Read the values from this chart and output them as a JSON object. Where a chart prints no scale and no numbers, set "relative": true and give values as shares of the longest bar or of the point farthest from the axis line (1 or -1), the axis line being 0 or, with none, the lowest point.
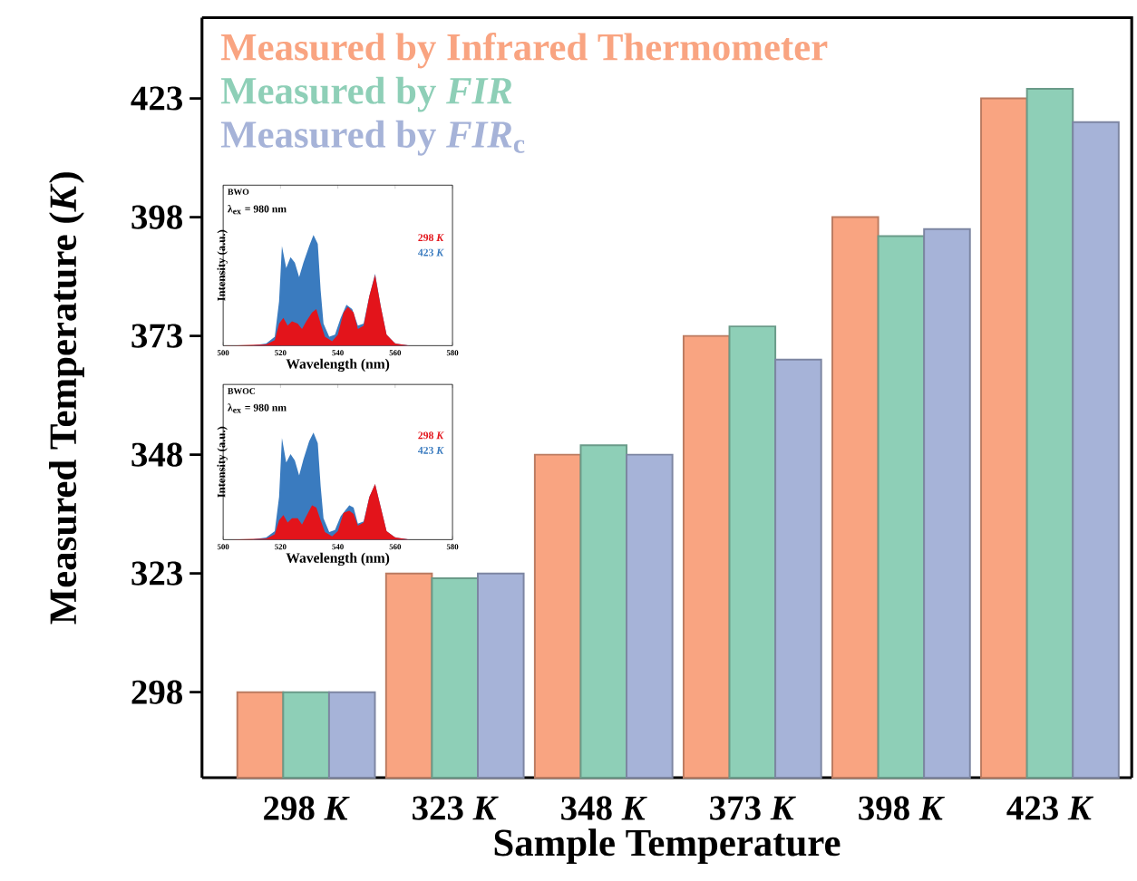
{
  "chart_data": [
    {
      "type": "bar",
      "categories": [
        "298 *K*",
        "323 *K*",
        "348 *K*",
        "373 *K*",
        "398 *K*",
        "423 *K*"
      ],
      "xlabel": "Sample Temperature",
      "ylabel": "Measured Temperature (*K*)",
      "ylim": [
        280,
        440
      ],
      "yticks": [
        298,
        323,
        348,
        373,
        398,
        423
      ],
      "legend": "top left",
      "series": [
        {
          "name": "Measured by Infrared Thermometer",
          "color": "#f9a481",
          "values": [
            298,
            323,
            348,
            373,
            398,
            423
          ]
        },
        {
          "name": "Measured by *FIR*",
          "color": "#8ecfb7",
          "values": [
            298,
            322,
            350,
            375,
            394,
            425
          ]
        },
        {
          "name": "Measured by *FIR*$_{c}$",
          "color": "#a6b3d8",
          "values": [
            298,
            323,
            348,
            368,
            395.5,
            418
          ]
        }
      ]
    },
    {
      "type": "area",
      "relative": true,
      "title": "BWO",
      "subtitle": "λ$_{ex}$ = 980 nm",
      "xlabel": "Wavelength (nm)",
      "ylabel": "Intensity (a.u.)",
      "xlim": [
        500,
        580
      ],
      "xticks": [
        500,
        520,
        540,
        560,
        580
      ],
      "legend": "right",
      "series": [
        {
          "name": "298 *K*",
          "color": "#e3141b",
          "x": [
            500,
            515,
            518,
            519.5,
            521,
            522.5,
            524,
            526,
            527.5,
            529,
            531,
            532.5,
            534,
            535.5,
            538,
            540,
            542,
            543.5,
            545.5,
            547,
            549,
            551,
            553,
            555,
            557,
            560,
            565,
            580
          ],
          "values": [
            0,
            0.01,
            0.05,
            0.2,
            0.25,
            0.18,
            0.22,
            0.2,
            0.15,
            0.22,
            0.3,
            0.33,
            0.2,
            0.08,
            0.04,
            0.1,
            0.3,
            0.35,
            0.3,
            0.15,
            0.18,
            0.45,
            0.64,
            0.35,
            0.1,
            0.02,
            0,
            0
          ]
        },
        {
          "name": "423 *K*",
          "color": "#3a7bbf",
          "x": [
            500,
            510,
            515,
            518,
            519.5,
            520.5,
            522,
            523.5,
            525,
            526.5,
            528,
            530,
            531.5,
            533,
            534,
            535,
            537,
            539,
            541,
            543,
            545,
            547,
            549,
            551,
            553,
            555,
            557,
            560,
            565,
            580
          ],
          "values": [
            0,
            0,
            0.02,
            0.08,
            0.4,
            0.9,
            0.7,
            0.8,
            0.75,
            0.62,
            0.75,
            0.9,
            1,
            0.92,
            0.5,
            0.2,
            0.08,
            0.1,
            0.25,
            0.37,
            0.33,
            0.18,
            0.2,
            0.45,
            0.65,
            0.35,
            0.1,
            0.02,
            0,
            0
          ]
        }
      ]
    },
    {
      "type": "area",
      "relative": true,
      "title": "BWOC",
      "subtitle": "λ$_{ex}$ = 980 nm",
      "xlabel": "Wavelength (nm)",
      "ylabel": "Intensity (a.u.)",
      "xlim": [
        500,
        580
      ],
      "xticks": [
        500,
        520,
        540,
        560,
        580
      ],
      "legend": "right",
      "series": [
        {
          "name": "298 *K*",
          "color": "#e3141b",
          "x": [
            500,
            515,
            518,
            519.5,
            521,
            522.5,
            524,
            526,
            527.5,
            529,
            531,
            532.5,
            534,
            535.5,
            538,
            540,
            542,
            544,
            545.5,
            547,
            549,
            551,
            553,
            555,
            557,
            560,
            565,
            580
          ],
          "values": [
            0,
            0.01,
            0.05,
            0.18,
            0.23,
            0.16,
            0.2,
            0.2,
            0.14,
            0.22,
            0.32,
            0.3,
            0.18,
            0.07,
            0.03,
            0.08,
            0.25,
            0.27,
            0.24,
            0.13,
            0.16,
            0.4,
            0.52,
            0.3,
            0.08,
            0.02,
            0,
            0
          ]
        },
        {
          "name": "423 *K*",
          "color": "#3a7bbf",
          "x": [
            500,
            510,
            515,
            518,
            519.5,
            520.5,
            522,
            523.5,
            525,
            526.5,
            528,
            530,
            531.5,
            533,
            534,
            535,
            537,
            539,
            541,
            544,
            545.5,
            547,
            549,
            551,
            553,
            555,
            557,
            560,
            565,
            580
          ],
          "values": [
            0,
            0,
            0.02,
            0.08,
            0.4,
            0.95,
            0.72,
            0.8,
            0.74,
            0.6,
            0.75,
            0.92,
            1,
            0.9,
            0.5,
            0.2,
            0.07,
            0.09,
            0.22,
            0.32,
            0.3,
            0.15,
            0.17,
            0.4,
            0.52,
            0.3,
            0.08,
            0.02,
            0,
            0
          ]
        }
      ]
    }
  ]
}
